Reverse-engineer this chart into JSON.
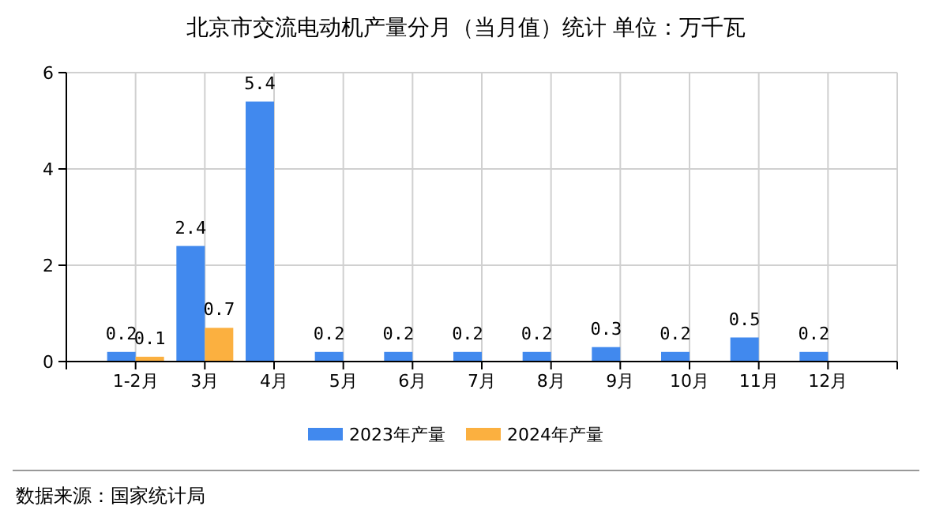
{
  "chart_data": {
    "type": "bar",
    "title": "北京市交流电动机产量分月（当月值）统计  单位：万千瓦",
    "categories": [
      "1-2月",
      "3月",
      "4月",
      "5月",
      "6月",
      "7月",
      "8月",
      "9月",
      "10月",
      "11月",
      "12月"
    ],
    "series": [
      {
        "name": "2023年产量",
        "color": "#4189ee",
        "values": [
          0.2,
          2.4,
          5.4,
          0.2,
          0.2,
          0.2,
          0.2,
          0.3,
          0.2,
          0.5,
          0.2
        ]
      },
      {
        "name": "2024年产量",
        "color": "#fbb040",
        "values": [
          0.1,
          0.7,
          null,
          null,
          null,
          null,
          null,
          null,
          null,
          null,
          null
        ]
      }
    ],
    "ylim": [
      0,
      6
    ],
    "yticks": [
      0,
      2,
      4,
      6
    ],
    "grid": true,
    "legend": "bottom",
    "data_labels": true,
    "annotations": [
      "数据来源：国家统计局"
    ]
  }
}
